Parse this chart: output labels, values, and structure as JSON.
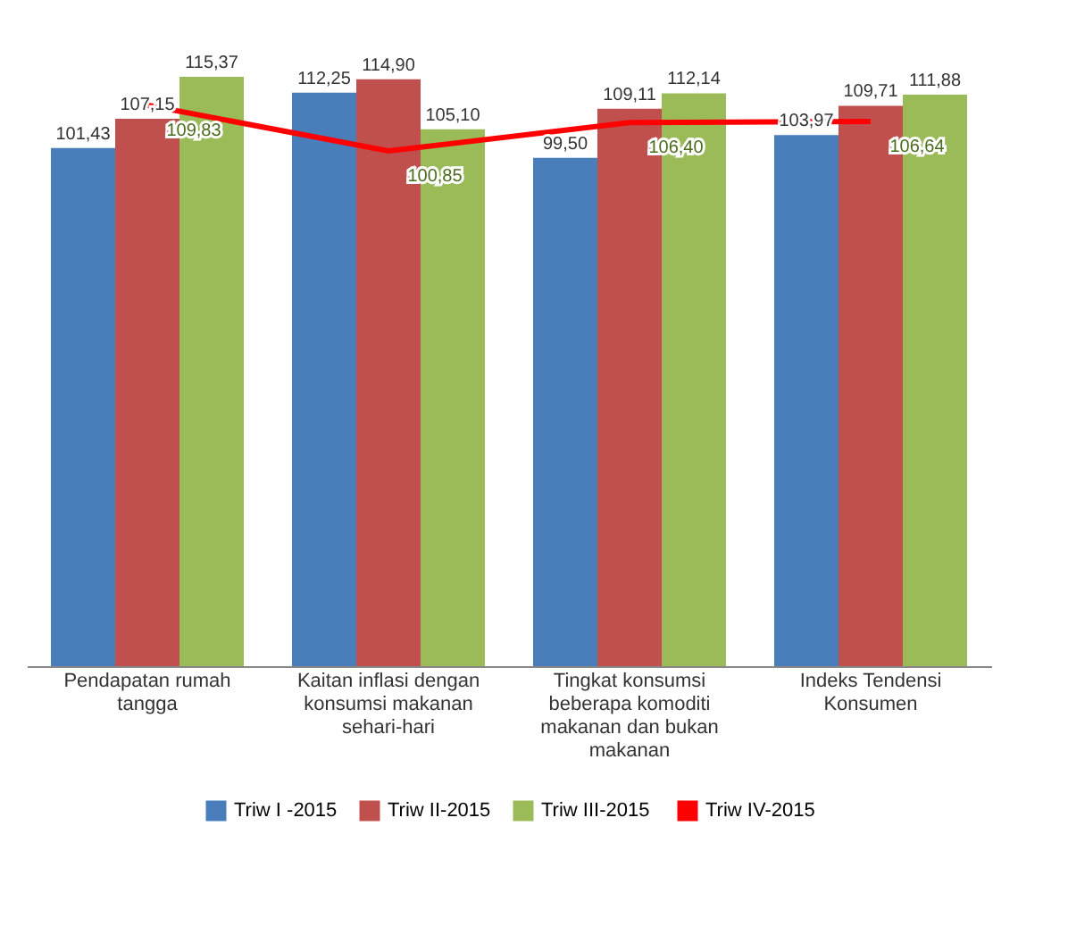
{
  "chart_data": {
    "type": "bar",
    "categories": [
      "Pendapatan rumah tangga",
      "Kaitan inflasi dengan konsumsi makanan sehari-hari",
      "Tingkat konsumsi beberapa komoditi makanan dan bukan makanan",
      "Indeks Tendensi Konsumen"
    ],
    "series": [
      {
        "name": "Triw I -2015",
        "color": "#4a7ebb",
        "values": [
          101.43,
          112.25,
          99.5,
          103.97
        ],
        "value_labels": [
          "101,43",
          "112,25",
          "99,50",
          "103,97"
        ]
      },
      {
        "name": "Triw II-2015",
        "color": "#c0504d",
        "values": [
          107.15,
          114.9,
          109.11,
          109.71
        ],
        "value_labels": [
          "107,15",
          "114,90",
          "109,11",
          "109,71"
        ]
      },
      {
        "name": "Triw  III-2015",
        "color": "#9bbb59",
        "values": [
          115.37,
          105.1,
          112.14,
          111.88
        ],
        "value_labels": [
          "115,37",
          "105,10",
          "112,14",
          "111,88"
        ]
      },
      {
        "name": "Triw  IV-2015",
        "color": "#ff0000",
        "type": "line",
        "values": [
          109.83,
          100.85,
          106.4,
          106.64
        ],
        "value_labels": [
          "109,83",
          "100,85",
          "106,40",
          "106,64"
        ]
      }
    ],
    "tick_labels": "x",
    "grid": false,
    "legend": "bottom"
  }
}
